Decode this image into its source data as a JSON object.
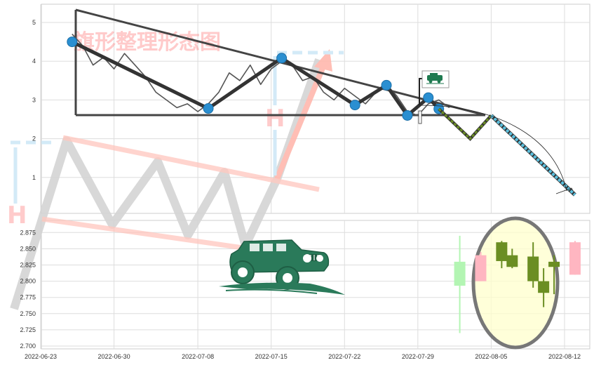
{
  "chart_data": [
    {
      "type": "line",
      "title": "",
      "watermark": "旗形整理形态图",
      "pattern_marker": "H",
      "xlabel": "",
      "ylabel": "",
      "ylim": [
        0,
        5.5
      ],
      "y_ticks": [
        "1",
        "2",
        "3",
        "4",
        "5"
      ],
      "y_tick_values": [
        1,
        2,
        3,
        4,
        5
      ],
      "grid": true,
      "legend_icon": "car-icon",
      "series": [
        {
          "name": "",
          "color": "#555555",
          "x": [
            "2022-06-26",
            "2022-06-27",
            "2022-06-28",
            "2022-06-29",
            "2022-06-30",
            "2022-07-01",
            "2022-07-02",
            "2022-07-03",
            "2022-07-04",
            "2022-07-05",
            "2022-07-06",
            "2022-07-07",
            "2022-07-08",
            "2022-07-09",
            "2022-07-10",
            "2022-07-11",
            "2022-07-12",
            "2022-07-13",
            "2022-07-14",
            "2022-07-15",
            "2022-07-16",
            "2022-07-17",
            "2022-07-18",
            "2022-07-19",
            "2022-07-20",
            "2022-07-21",
            "2022-07-22",
            "2022-07-23",
            "2022-07-24",
            "2022-07-25",
            "2022-07-26",
            "2022-07-27",
            "2022-07-28",
            "2022-07-29",
            "2022-07-30",
            "2022-07-31",
            "2022-08-01"
          ],
          "values": [
            4.7,
            4.4,
            3.9,
            4.1,
            3.8,
            4.2,
            3.9,
            3.6,
            3.2,
            3.0,
            2.8,
            2.9,
            2.7,
            2.9,
            3.2,
            3.7,
            3.5,
            3.9,
            3.4,
            3.8,
            4.0,
            3.9,
            3.5,
            3.6,
            3.2,
            3.0,
            3.3,
            3.1,
            2.9,
            3.2,
            3.4,
            3.1,
            2.7,
            2.6,
            2.9,
            3.0,
            2.8
          ]
        },
        {
          "name": "",
          "color": "#333333",
          "x": [
            "2022-06-26",
            "2022-07-09",
            "2022-07-16",
            "2022-07-23",
            "2022-07-26",
            "2022-07-28",
            "2022-07-30",
            "2022-07-31"
          ],
          "values": [
            4.5,
            2.78,
            4.08,
            2.87,
            3.38,
            2.6,
            3.06,
            2.77
          ]
        },
        {
          "name": "",
          "color": "#6b8e23",
          "x": [
            "2022-07-31",
            "2022-08-03",
            "2022-08-05"
          ],
          "values": [
            2.77,
            2.0,
            2.6
          ]
        },
        {
          "name": "",
          "color": "#5bc0de",
          "x": [
            "2022-08-05",
            "2022-08-13"
          ],
          "values": [
            2.6,
            0.55
          ]
        }
      ]
    },
    {
      "type": "candlestick",
      "title": "",
      "xlabel": "",
      "ylabel": "",
      "ylim": [
        2.7,
        2.89
      ],
      "y_ticks": [
        "2.700",
        "2.725",
        "2.750",
        "2.775",
        "2.800",
        "2.825",
        "2.850",
        "2.875"
      ],
      "y_tick_values": [
        2.7,
        2.725,
        2.75,
        2.775,
        2.8,
        2.825,
        2.85,
        2.875
      ],
      "x_ticks": [
        "2022-06-23",
        "2022-06-30",
        "2022-07-08",
        "2022-07-15",
        "2022-07-22",
        "2022-07-29",
        "2022-08-05",
        "2022-08-12"
      ],
      "grid": true,
      "candles": [
        {
          "date": "2022-08-02",
          "open": 2.83,
          "high": 2.87,
          "low": 2.72,
          "close": 2.793,
          "color": "#b3f5b3"
        },
        {
          "date": "2022-08-04",
          "open": 2.8,
          "high": 2.845,
          "low": 2.8,
          "close": 2.84,
          "color": "#ffb6c1"
        },
        {
          "date": "2022-08-06",
          "open": 2.86,
          "high": 2.862,
          "low": 2.82,
          "close": 2.831,
          "color": "#6b8e23"
        },
        {
          "date": "2022-08-07",
          "open": 2.84,
          "high": 2.85,
          "low": 2.82,
          "close": 2.822,
          "color": "#6b8e23"
        },
        {
          "date": "2022-08-09",
          "open": 2.838,
          "high": 2.86,
          "low": 2.79,
          "close": 2.8,
          "color": "#6b8e23"
        },
        {
          "date": "2022-08-10",
          "open": 2.8,
          "high": 2.82,
          "low": 2.76,
          "close": 2.782,
          "color": "#6b8e23"
        },
        {
          "date": "2022-08-11",
          "open": 2.822,
          "high": 2.84,
          "low": 2.78,
          "close": 2.83,
          "color": "#6b8e23"
        },
        {
          "date": "2022-08-13",
          "open": 2.81,
          "high": 2.862,
          "low": 2.81,
          "close": 2.86,
          "color": "#ffb6c1"
        }
      ]
    }
  ]
}
